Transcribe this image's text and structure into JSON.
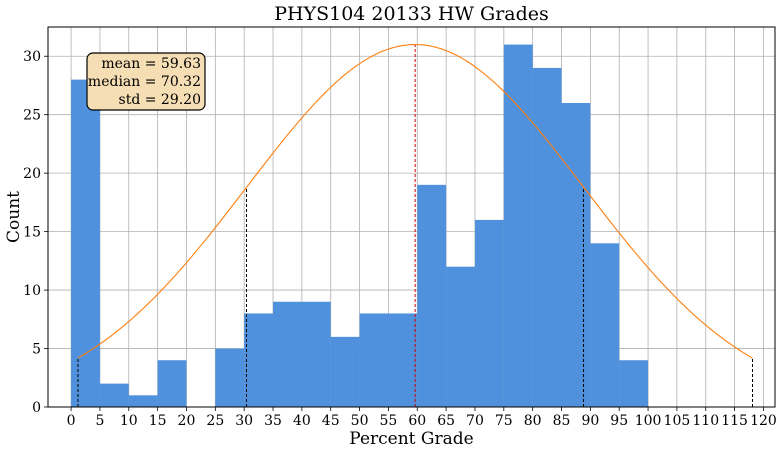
{
  "chart_data": {
    "type": "bar",
    "title": "PHYS104 20133 HW Grades",
    "xlabel": "Percent Grade",
    "ylabel": "Count",
    "xlim": [
      -4,
      122
    ],
    "ylim": [
      0,
      32.5
    ],
    "x_ticks": [
      0,
      5,
      10,
      15,
      20,
      25,
      30,
      35,
      40,
      45,
      50,
      55,
      60,
      65,
      70,
      75,
      80,
      85,
      90,
      95,
      100,
      105,
      110,
      115,
      120
    ],
    "y_ticks": [
      0,
      5,
      10,
      15,
      20,
      25,
      30
    ],
    "grid": true,
    "bar_color": "#5091dd",
    "bins": [
      {
        "x0": 0,
        "x1": 5,
        "count": 28
      },
      {
        "x0": 5,
        "x1": 10,
        "count": 2
      },
      {
        "x0": 10,
        "x1": 15,
        "count": 1
      },
      {
        "x0": 15,
        "x1": 20,
        "count": 4
      },
      {
        "x0": 20,
        "x1": 25,
        "count": 0
      },
      {
        "x0": 25,
        "x1": 30,
        "count": 5
      },
      {
        "x0": 30,
        "x1": 35,
        "count": 8
      },
      {
        "x0": 35,
        "x1": 40,
        "count": 9
      },
      {
        "x0": 40,
        "x1": 45,
        "count": 9
      },
      {
        "x0": 45,
        "x1": 50,
        "count": 6
      },
      {
        "x0": 50,
        "x1": 55,
        "count": 8
      },
      {
        "x0": 55,
        "x1": 60,
        "count": 8
      },
      {
        "x0": 60,
        "x1": 65,
        "count": 19
      },
      {
        "x0": 65,
        "x1": 70,
        "count": 12
      },
      {
        "x0": 70,
        "x1": 75,
        "count": 16
      },
      {
        "x0": 75,
        "x1": 80,
        "count": 31
      },
      {
        "x0": 80,
        "x1": 85,
        "count": 29
      },
      {
        "x0": 85,
        "x1": 90,
        "count": 26
      },
      {
        "x0": 90,
        "x1": 95,
        "count": 14
      },
      {
        "x0": 95,
        "x1": 100,
        "count": 4
      }
    ],
    "fit_curve": {
      "color": "#ff7f0e",
      "mean": 59.63,
      "std": 29.2,
      "peak": 31,
      "x_range": [
        1.2,
        118.1
      ]
    },
    "mean_line": {
      "x": 59.63,
      "color": "#cc0000"
    },
    "std_lines": {
      "x": [
        1.2,
        30.4,
        88.8,
        118.1
      ],
      "color": "#000000"
    },
    "stats_box": {
      "lines": [
        "mean = 59.63",
        "median = 70.32",
        "std = 29.20"
      ],
      "position": "top-left",
      "fill": "#f5deb3"
    }
  }
}
